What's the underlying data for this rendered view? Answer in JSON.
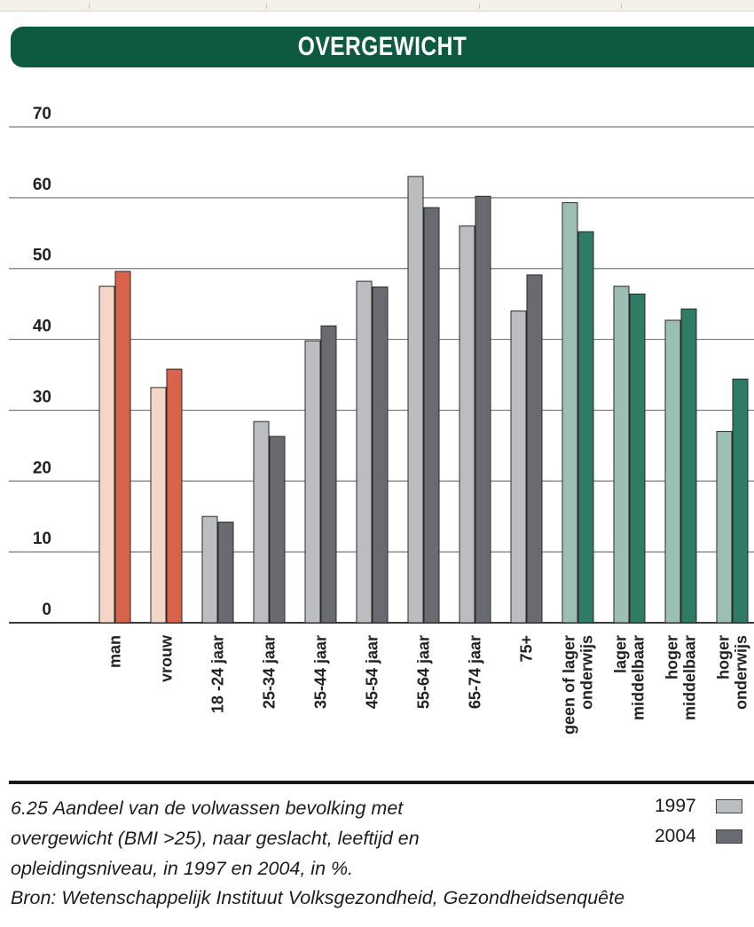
{
  "banner": {
    "title": "OVERGEWICHT"
  },
  "chart_data": {
    "type": "bar",
    "title": "OVERGEWICHT",
    "ylim": [
      0,
      70
    ],
    "yticks": [
      0,
      10,
      20,
      30,
      40,
      50,
      60,
      70
    ],
    "grid": true,
    "categories": [
      "man",
      "vrouw",
      "18 -24 jaar",
      "25-34 jaar",
      "35-44 jaar",
      "45-54 jaar",
      "55-64 jaar",
      "65-74 jaar",
      "75+",
      "geen of lager onderwijs",
      "lager middelbaar",
      "hoger middelbaar",
      "hoger onderwijs"
    ],
    "category_label_lines": [
      [
        "man"
      ],
      [
        "vrouw"
      ],
      [
        "18 -24 jaar"
      ],
      [
        "25-34 jaar"
      ],
      [
        "35-44 jaar"
      ],
      [
        "45-54 jaar"
      ],
      [
        "55-64 jaar"
      ],
      [
        "65-74 jaar"
      ],
      [
        "75+"
      ],
      [
        "geen of lager",
        "onderwijs"
      ],
      [
        "lager",
        "middelbaar"
      ],
      [
        "hoger",
        "middelbaar"
      ],
      [
        "hoger",
        "onderwijs"
      ]
    ],
    "series": [
      {
        "name": "1997",
        "values": [
          47.5,
          33.2,
          15.0,
          28.4,
          39.8,
          48.2,
          63.0,
          56.0,
          44.0,
          59.3,
          47.5,
          42.7,
          27.0
        ]
      },
      {
        "name": "2004",
        "values": [
          49.6,
          35.8,
          14.2,
          26.3,
          41.9,
          47.4,
          58.6,
          60.2,
          49.1,
          55.2,
          46.4,
          44.3,
          34.4
        ]
      }
    ],
    "legend": "bottom-right",
    "group_colors": {
      "sex": {
        "1997": "#f4d6c9",
        "2004": "#d9624a"
      },
      "age": {
        "1997": "#bcbdc1",
        "2004": "#6a6b70"
      },
      "education": {
        "1997": "#9dbfb3",
        "2004": "#2e7b66"
      }
    },
    "category_groups": [
      "sex",
      "sex",
      "age",
      "age",
      "age",
      "age",
      "age",
      "age",
      "age",
      "education",
      "education",
      "education",
      "education"
    ]
  },
  "caption": {
    "number": "6.25",
    "lines": [
      "Aandeel van de volwassen bevolking met",
      "overgewicht (BMI >25), naar geslacht, leeftijd en",
      "opleidingsniveau, in 1997 en 2004, in %."
    ],
    "source": "Bron: Wetenschappelijk Instituut Volksgezondheid, Gezondheidsenquête"
  },
  "legend": {
    "items": [
      {
        "label": "1997",
        "color": "#bcbdc1"
      },
      {
        "label": "2004",
        "color": "#6a6b70"
      }
    ]
  }
}
